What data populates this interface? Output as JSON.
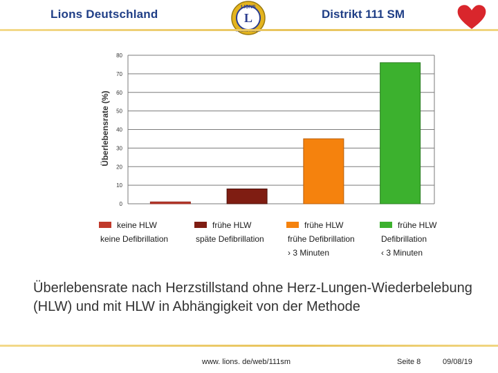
{
  "header": {
    "left_title": "Lions Deutschland",
    "right_title": "Distrikt 111 SM",
    "logo_text_top": "LIONS",
    "logo_letter": "L",
    "logo_text_bottom": "INTERNATIONAL",
    "accent_color": "#1f3e86",
    "heart_color": "#d9262c"
  },
  "chart_data": {
    "type": "bar",
    "ylabel": "Überlebensrate (%)",
    "xlabel": "",
    "ylim": [
      0,
      80
    ],
    "yticks": [
      0,
      10,
      20,
      30,
      40,
      50,
      60,
      70,
      80
    ],
    "grid": true,
    "legend_position": "bottom",
    "categories": [
      [
        "keine HLW",
        "keine Defibrillation"
      ],
      [
        "frühe HLW",
        "späte Defibrillation"
      ],
      [
        "frühe HLW",
        "frühe Defibrillation",
        "› 3 Minuten"
      ],
      [
        "frühe HLW",
        "Defibrillation",
        "‹ 3 Minuten"
      ]
    ],
    "values": [
      1,
      8,
      35,
      76
    ],
    "colors": [
      "#c0392b",
      "#7f1d12",
      "#f5820d",
      "#3cb12e"
    ]
  },
  "caption": "Überlebensrate nach Herzstillstand ohne Herz-Lungen-Wiederbelebung (HLW) und mit HLW in Abhängigkeit von der Methode",
  "footer": {
    "url": "www. lions. de/web/111sm",
    "page": "Seite 8",
    "date": "09/08/19"
  }
}
